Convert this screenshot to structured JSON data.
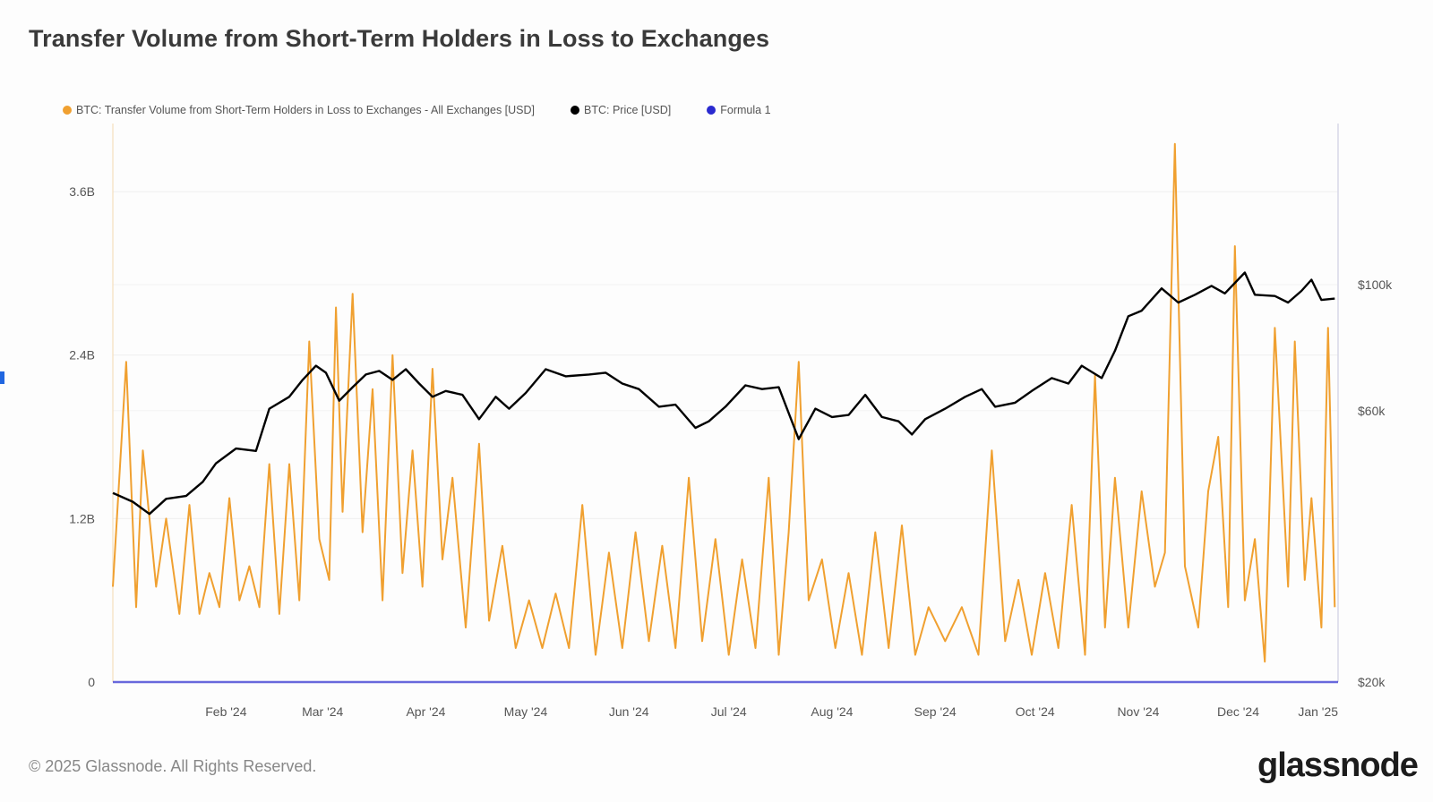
{
  "header": {
    "title": "Transfer Volume from Short-Term Holders in Loss to Exchanges"
  },
  "legend": {
    "items": [
      {
        "label": "BTC: Transfer Volume from Short-Term Holders in Loss to Exchanges - All Exchanges [USD]",
        "color": "#f0a030"
      },
      {
        "label": "BTC: Price [USD]",
        "color": "#000000"
      },
      {
        "label": "Formula 1",
        "color": "#2a2ad0"
      }
    ]
  },
  "footer": {
    "copyright": "© 2025 Glassnode. All Rights Reserved.",
    "brand": "glassnode"
  },
  "chart_data": {
    "type": "line",
    "x_range": [
      "2024-01-12",
      "2025-01-14"
    ],
    "x_ticks": [
      "Feb '24",
      "Mar '24",
      "Apr '24",
      "May '24",
      "Jun '24",
      "Jul '24",
      "Aug '24",
      "Sep '24",
      "Oct '24",
      "Nov '24",
      "Dec '24",
      "Jan '25"
    ],
    "y_left": {
      "ticks": [
        "0",
        "1.2B",
        "2.4B",
        "3.6B"
      ],
      "range": [
        0,
        4.1
      ]
    },
    "y_right": {
      "ticks": [
        "$20k",
        "$60k",
        "$100k"
      ],
      "scale": "log"
    },
    "legend_position": "top-left",
    "series": [
      {
        "name": "BTC: Transfer Volume from Short-Term Holders in Loss to Exchanges - All Exchanges [USD]",
        "axis": "left",
        "unit": "B USD",
        "color": "#f0a030",
        "points": [
          [
            "2024-01-12",
            0.7
          ],
          [
            "2024-01-16",
            2.35
          ],
          [
            "2024-01-19",
            0.55
          ],
          [
            "2024-01-21",
            1.7
          ],
          [
            "2024-01-25",
            0.7
          ],
          [
            "2024-01-28",
            1.2
          ],
          [
            "2024-02-01",
            0.5
          ],
          [
            "2024-02-04",
            1.3
          ],
          [
            "2024-02-07",
            0.5
          ],
          [
            "2024-02-10",
            0.8
          ],
          [
            "2024-02-13",
            0.55
          ],
          [
            "2024-02-16",
            1.35
          ],
          [
            "2024-02-19",
            0.6
          ],
          [
            "2024-02-22",
            0.85
          ],
          [
            "2024-02-25",
            0.55
          ],
          [
            "2024-02-28",
            1.6
          ],
          [
            "2024-03-02",
            0.5
          ],
          [
            "2024-03-05",
            1.6
          ],
          [
            "2024-03-08",
            0.6
          ],
          [
            "2024-03-11",
            2.5
          ],
          [
            "2024-03-14",
            1.05
          ],
          [
            "2024-03-17",
            0.75
          ],
          [
            "2024-03-19",
            2.75
          ],
          [
            "2024-03-21",
            1.25
          ],
          [
            "2024-03-24",
            2.85
          ],
          [
            "2024-03-27",
            1.1
          ],
          [
            "2024-03-30",
            2.15
          ],
          [
            "2024-04-02",
            0.6
          ],
          [
            "2024-04-05",
            2.4
          ],
          [
            "2024-04-08",
            0.8
          ],
          [
            "2024-04-11",
            1.7
          ],
          [
            "2024-04-14",
            0.7
          ],
          [
            "2024-04-17",
            2.3
          ],
          [
            "2024-04-20",
            0.9
          ],
          [
            "2024-04-23",
            1.5
          ],
          [
            "2024-04-27",
            0.4
          ],
          [
            "2024-05-01",
            1.75
          ],
          [
            "2024-05-04",
            0.45
          ],
          [
            "2024-05-08",
            1.0
          ],
          [
            "2024-05-12",
            0.25
          ],
          [
            "2024-05-16",
            0.6
          ],
          [
            "2024-05-20",
            0.25
          ],
          [
            "2024-05-24",
            0.65
          ],
          [
            "2024-05-28",
            0.25
          ],
          [
            "2024-06-01",
            1.3
          ],
          [
            "2024-06-05",
            0.2
          ],
          [
            "2024-06-09",
            0.95
          ],
          [
            "2024-06-13",
            0.25
          ],
          [
            "2024-06-17",
            1.1
          ],
          [
            "2024-06-21",
            0.3
          ],
          [
            "2024-06-25",
            1.0
          ],
          [
            "2024-06-29",
            0.25
          ],
          [
            "2024-07-03",
            1.5
          ],
          [
            "2024-07-07",
            0.3
          ],
          [
            "2024-07-11",
            1.05
          ],
          [
            "2024-07-15",
            0.2
          ],
          [
            "2024-07-19",
            0.9
          ],
          [
            "2024-07-23",
            0.25
          ],
          [
            "2024-07-27",
            1.5
          ],
          [
            "2024-07-30",
            0.2
          ],
          [
            "2024-08-02",
            1.1
          ],
          [
            "2024-08-05",
            2.35
          ],
          [
            "2024-08-08",
            0.6
          ],
          [
            "2024-08-12",
            0.9
          ],
          [
            "2024-08-16",
            0.25
          ],
          [
            "2024-08-20",
            0.8
          ],
          [
            "2024-08-24",
            0.2
          ],
          [
            "2024-08-28",
            1.1
          ],
          [
            "2024-09-01",
            0.25
          ],
          [
            "2024-09-05",
            1.15
          ],
          [
            "2024-09-09",
            0.2
          ],
          [
            "2024-09-13",
            0.55
          ],
          [
            "2024-09-18",
            0.3
          ],
          [
            "2024-09-23",
            0.55
          ],
          [
            "2024-09-28",
            0.2
          ],
          [
            "2024-10-02",
            1.7
          ],
          [
            "2024-10-06",
            0.3
          ],
          [
            "2024-10-10",
            0.75
          ],
          [
            "2024-10-14",
            0.2
          ],
          [
            "2024-10-18",
            0.8
          ],
          [
            "2024-10-22",
            0.25
          ],
          [
            "2024-10-26",
            1.3
          ],
          [
            "2024-10-30",
            0.2
          ],
          [
            "2024-11-02",
            2.25
          ],
          [
            "2024-11-05",
            0.4
          ],
          [
            "2024-11-08",
            1.5
          ],
          [
            "2024-11-12",
            0.4
          ],
          [
            "2024-11-16",
            1.4
          ],
          [
            "2024-11-20",
            0.7
          ],
          [
            "2024-11-23",
            0.95
          ],
          [
            "2024-11-26",
            3.95
          ],
          [
            "2024-11-29",
            0.85
          ],
          [
            "2024-12-03",
            0.4
          ],
          [
            "2024-12-06",
            1.4
          ],
          [
            "2024-12-09",
            1.8
          ],
          [
            "2024-12-12",
            0.55
          ],
          [
            "2024-12-14",
            3.2
          ],
          [
            "2024-12-17",
            0.6
          ],
          [
            "2024-12-20",
            1.05
          ],
          [
            "2024-12-23",
            0.15
          ],
          [
            "2024-12-26",
            2.6
          ],
          [
            "2024-12-30",
            0.7
          ],
          [
            "2025-01-01",
            2.5
          ],
          [
            "2025-01-04",
            0.75
          ],
          [
            "2025-01-06",
            1.35
          ],
          [
            "2025-01-09",
            0.4
          ],
          [
            "2025-01-11",
            2.6
          ],
          [
            "2025-01-13",
            0.55
          ]
        ]
      },
      {
        "name": "BTC: Price [USD]",
        "axis": "right",
        "unit": "USD",
        "color": "#000000",
        "points": [
          [
            "2024-01-12",
            43000
          ],
          [
            "2024-01-18",
            41500
          ],
          [
            "2024-01-23",
            39500
          ],
          [
            "2024-01-28",
            42000
          ],
          [
            "2024-02-03",
            42500
          ],
          [
            "2024-02-08",
            45000
          ],
          [
            "2024-02-12",
            48500
          ],
          [
            "2024-02-18",
            51500
          ],
          [
            "2024-02-24",
            51000
          ],
          [
            "2024-02-28",
            60500
          ],
          [
            "2024-03-05",
            63500
          ],
          [
            "2024-03-09",
            68000
          ],
          [
            "2024-03-13",
            72000
          ],
          [
            "2024-03-16",
            70000
          ],
          [
            "2024-03-20",
            62500
          ],
          [
            "2024-03-24",
            66000
          ],
          [
            "2024-03-28",
            69500
          ],
          [
            "2024-04-01",
            70500
          ],
          [
            "2024-04-05",
            68000
          ],
          [
            "2024-04-09",
            71000
          ],
          [
            "2024-04-13",
            67000
          ],
          [
            "2024-04-17",
            63500
          ],
          [
            "2024-04-21",
            65000
          ],
          [
            "2024-04-26",
            64000
          ],
          [
            "2024-05-01",
            58000
          ],
          [
            "2024-05-06",
            63500
          ],
          [
            "2024-05-10",
            60500
          ],
          [
            "2024-05-15",
            64500
          ],
          [
            "2024-05-21",
            71000
          ],
          [
            "2024-05-27",
            69000
          ],
          [
            "2024-06-03",
            69500
          ],
          [
            "2024-06-08",
            70000
          ],
          [
            "2024-06-13",
            67000
          ],
          [
            "2024-06-18",
            65500
          ],
          [
            "2024-06-24",
            61000
          ],
          [
            "2024-06-29",
            61500
          ],
          [
            "2024-07-05",
            56000
          ],
          [
            "2024-07-09",
            57500
          ],
          [
            "2024-07-14",
            61000
          ],
          [
            "2024-07-20",
            66500
          ],
          [
            "2024-07-25",
            65500
          ],
          [
            "2024-07-30",
            66000
          ],
          [
            "2024-08-05",
            53500
          ],
          [
            "2024-08-10",
            60500
          ],
          [
            "2024-08-15",
            58500
          ],
          [
            "2024-08-20",
            59000
          ],
          [
            "2024-08-25",
            64000
          ],
          [
            "2024-08-30",
            58500
          ],
          [
            "2024-09-04",
            57500
          ],
          [
            "2024-09-08",
            54500
          ],
          [
            "2024-09-12",
            58000
          ],
          [
            "2024-09-18",
            60500
          ],
          [
            "2024-09-24",
            63500
          ],
          [
            "2024-09-29",
            65500
          ],
          [
            "2024-10-03",
            61000
          ],
          [
            "2024-10-09",
            62000
          ],
          [
            "2024-10-14",
            65000
          ],
          [
            "2024-10-20",
            68500
          ],
          [
            "2024-10-25",
            67000
          ],
          [
            "2024-10-29",
            72000
          ],
          [
            "2024-11-04",
            68500
          ],
          [
            "2024-11-08",
            76500
          ],
          [
            "2024-11-12",
            88000
          ],
          [
            "2024-11-16",
            90000
          ],
          [
            "2024-11-22",
            98500
          ],
          [
            "2024-11-27",
            93000
          ],
          [
            "2024-12-02",
            96000
          ],
          [
            "2024-12-07",
            99500
          ],
          [
            "2024-12-11",
            96500
          ],
          [
            "2024-12-17",
            105000
          ],
          [
            "2024-12-20",
            96000
          ],
          [
            "2024-12-26",
            95500
          ],
          [
            "2024-12-30",
            93000
          ],
          [
            "2025-01-03",
            97500
          ],
          [
            "2025-01-06",
            102000
          ],
          [
            "2025-01-09",
            94000
          ],
          [
            "2025-01-13",
            94500
          ]
        ]
      },
      {
        "name": "Formula 1",
        "axis": "left",
        "color": "#2a2ad0",
        "points": [
          [
            "2024-01-12",
            0
          ],
          [
            "2025-01-14",
            0
          ]
        ]
      }
    ]
  }
}
